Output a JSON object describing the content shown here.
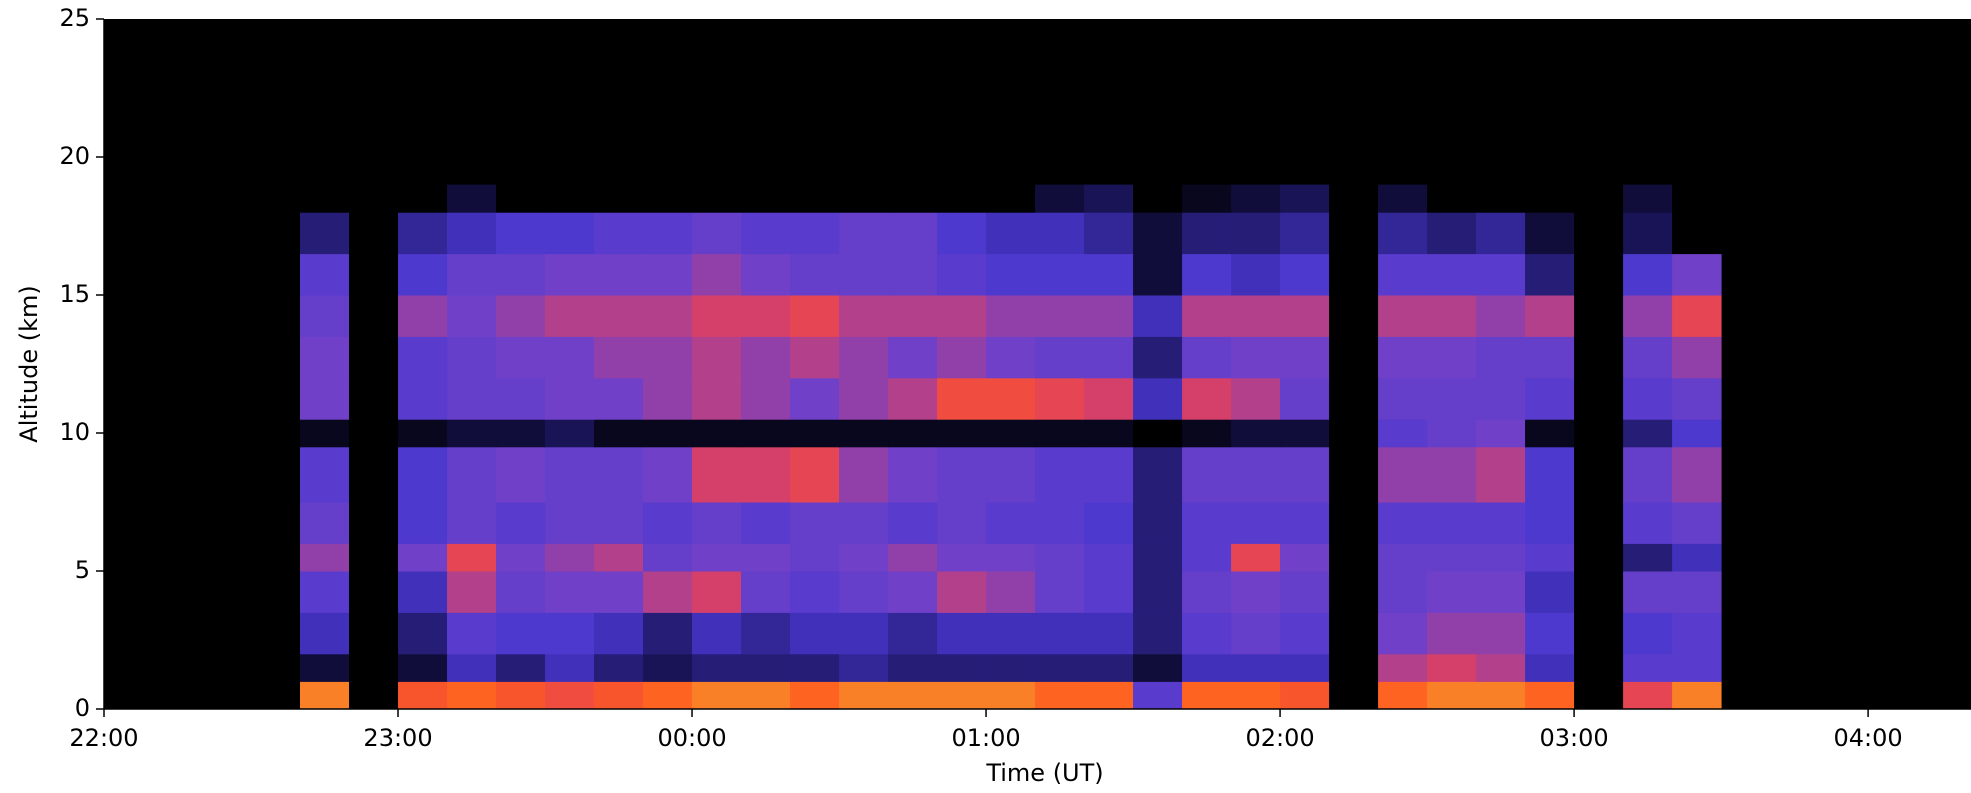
{
  "chart_data": {
    "type": "heatmap",
    "xlabel": "Time (UT)",
    "ylabel": "Altitude (km)",
    "xlim": [
      0,
      381
    ],
    "xticks": [
      {
        "value": 0,
        "label": "22:00"
      },
      {
        "value": 60,
        "label": "23:00"
      },
      {
        "value": 120,
        "label": "00:00"
      },
      {
        "value": 180,
        "label": "01:00"
      },
      {
        "value": 240,
        "label": "02:00"
      },
      {
        "value": 300,
        "label": "03:00"
      },
      {
        "value": 360,
        "label": "04:00"
      }
    ],
    "ylim": [
      0,
      25
    ],
    "yticks": [
      0,
      5,
      10,
      15,
      20,
      25
    ],
    "background": "#000000",
    "colormap": [
      "#000000",
      "#1c1660",
      "#4a38d0",
      "#7040c8",
      "#e04060",
      "#ff5a20",
      "#f0b830"
    ],
    "zlim": [
      0,
      1
    ],
    "xbins": [
      40,
      50,
      60,
      70,
      80,
      90,
      100,
      110,
      120,
      130,
      140,
      150,
      160,
      170,
      180,
      190,
      200,
      210,
      220,
      230,
      240,
      250,
      260,
      270,
      280,
      290,
      300,
      310,
      320,
      330
    ],
    "ybins": [
      0,
      1,
      2,
      3.5,
      5,
      6,
      7.5,
      9.5,
      10.5,
      12,
      13.5,
      15,
      16.5,
      18,
      19
    ],
    "z": [
      [
        0.9,
        0,
        0.8,
        0.85,
        0.8,
        0.75,
        0.8,
        0.85,
        0.9,
        0.9,
        0.85,
        0.9,
        0.9,
        0.9,
        0.9,
        0.85,
        0.85,
        0.4,
        0.85,
        0.85,
        0.8,
        0,
        0.85,
        0.9,
        0.9,
        0.85,
        0,
        0.7,
        0.9
      ],
      [
        0.1,
        0,
        0.1,
        0.3,
        0.2,
        0.3,
        0.2,
        0.15,
        0.2,
        0.2,
        0.2,
        0.25,
        0.2,
        0.2,
        0.2,
        0.2,
        0.2,
        0.1,
        0.3,
        0.3,
        0.3,
        0,
        0.6,
        0.65,
        0.6,
        0.3,
        0,
        0.4,
        0.4
      ],
      [
        0.3,
        0,
        0.2,
        0.4,
        0.35,
        0.35,
        0.3,
        0.2,
        0.3,
        0.25,
        0.3,
        0.3,
        0.25,
        0.3,
        0.3,
        0.3,
        0.3,
        0.2,
        0.4,
        0.45,
        0.4,
        0,
        0.5,
        0.55,
        0.55,
        0.35,
        0,
        0.35,
        0.4
      ],
      [
        0.4,
        0,
        0.3,
        0.6,
        0.45,
        0.5,
        0.5,
        0.6,
        0.65,
        0.45,
        0.4,
        0.45,
        0.5,
        0.6,
        0.55,
        0.45,
        0.4,
        0.2,
        0.45,
        0.5,
        0.45,
        0,
        0.45,
        0.5,
        0.5,
        0.3,
        0,
        0.45,
        0.45
      ],
      [
        0.55,
        0,
        0.5,
        0.7,
        0.5,
        0.55,
        0.6,
        0.45,
        0.5,
        0.5,
        0.45,
        0.5,
        0.55,
        0.5,
        0.5,
        0.45,
        0.4,
        0.2,
        0.4,
        0.7,
        0.5,
        0,
        0.45,
        0.45,
        0.45,
        0.4,
        0,
        0.2,
        0.3
      ],
      [
        0.45,
        0,
        0.35,
        0.45,
        0.4,
        0.45,
        0.45,
        0.4,
        0.45,
        0.4,
        0.45,
        0.45,
        0.4,
        0.45,
        0.4,
        0.4,
        0.35,
        0.2,
        0.4,
        0.4,
        0.4,
        0,
        0.4,
        0.4,
        0.4,
        0.35,
        0,
        0.4,
        0.45
      ],
      [
        0.4,
        0,
        0.35,
        0.45,
        0.5,
        0.45,
        0.45,
        0.5,
        0.65,
        0.65,
        0.7,
        0.55,
        0.5,
        0.45,
        0.45,
        0.4,
        0.4,
        0.2,
        0.45,
        0.45,
        0.45,
        0,
        0.55,
        0.55,
        0.6,
        0.35,
        0,
        0.45,
        0.55
      ],
      [
        0.05,
        0,
        0.05,
        0.1,
        0.1,
        0.15,
        0.05,
        0.05,
        0.05,
        0.05,
        0.05,
        0.05,
        0.05,
        0.05,
        0.05,
        0.05,
        0.05,
        0,
        0.05,
        0.1,
        0.1,
        0,
        0.4,
        0.45,
        0.5,
        0.05,
        0,
        0.2,
        0.35
      ],
      [
        0.5,
        0,
        0.4,
        0.45,
        0.45,
        0.5,
        0.5,
        0.55,
        0.6,
        0.55,
        0.5,
        0.55,
        0.6,
        0.75,
        0.75,
        0.7,
        0.65,
        0.3,
        0.65,
        0.6,
        0.45,
        0,
        0.45,
        0.45,
        0.45,
        0.4,
        0,
        0.4,
        0.45
      ],
      [
        0.5,
        0,
        0.4,
        0.45,
        0.5,
        0.5,
        0.55,
        0.55,
        0.6,
        0.55,
        0.6,
        0.55,
        0.5,
        0.55,
        0.5,
        0.45,
        0.45,
        0.2,
        0.45,
        0.5,
        0.5,
        0,
        0.5,
        0.5,
        0.45,
        0.45,
        0,
        0.45,
        0.55
      ],
      [
        0.45,
        0,
        0.55,
        0.5,
        0.55,
        0.6,
        0.6,
        0.6,
        0.65,
        0.65,
        0.7,
        0.6,
        0.6,
        0.6,
        0.55,
        0.55,
        0.55,
        0.3,
        0.6,
        0.6,
        0.6,
        0,
        0.6,
        0.6,
        0.55,
        0.6,
        0,
        0.55,
        0.7
      ],
      [
        0.4,
        0,
        0.35,
        0.45,
        0.45,
        0.5,
        0.5,
        0.5,
        0.55,
        0.5,
        0.45,
        0.45,
        0.45,
        0.4,
        0.35,
        0.35,
        0.35,
        0.1,
        0.35,
        0.3,
        0.35,
        0,
        0.4,
        0.4,
        0.4,
        0.2,
        0,
        0.35,
        0.5
      ],
      [
        0.2,
        0,
        0.25,
        0.3,
        0.35,
        0.35,
        0.4,
        0.4,
        0.45,
        0.4,
        0.4,
        0.45,
        0.45,
        0.35,
        0.3,
        0.3,
        0.25,
        0.1,
        0.2,
        0.2,
        0.25,
        0,
        0.25,
        0.2,
        0.25,
        0.1,
        0,
        0.15,
        0
      ],
      [
        0,
        0,
        0,
        0.1,
        0,
        0,
        0,
        0,
        0,
        0,
        0,
        0,
        0,
        0,
        0,
        0.1,
        0.15,
        0,
        0.05,
        0.1,
        0.15,
        0,
        0.1,
        0,
        0,
        0,
        0,
        0.1,
        0
      ]
    ]
  }
}
